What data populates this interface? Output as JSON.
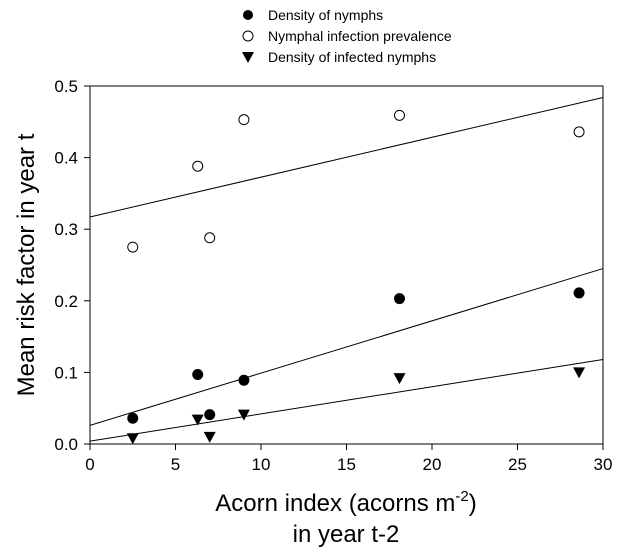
{
  "chart_data": {
    "type": "scatter",
    "xlabel": "Acorn index (acorns m-2)",
    "xlabel_main": "Acorn index (acorns m",
    "xlabel_sup": "-2",
    "xlabel_close": ")",
    "xlabel_line2": "in year t-2",
    "ylabel": "Mean risk factor in year t",
    "xlim": [
      0,
      30
    ],
    "ylim": [
      0,
      0.5
    ],
    "x_ticks": [
      "0",
      "5",
      "10",
      "15",
      "20",
      "25",
      "30"
    ],
    "y_ticks": [
      "0.0",
      "0.1",
      "0.2",
      "0.3",
      "0.4",
      "0.5"
    ],
    "legend_position": "top-center",
    "grid": false,
    "series": [
      {
        "name": "Density of nymphs",
        "marker": "filled-circle",
        "points": [
          [
            2.5,
            0.036
          ],
          [
            6.3,
            0.097
          ],
          [
            7.0,
            0.041
          ],
          [
            9.0,
            0.089
          ],
          [
            18.1,
            0.203
          ],
          [
            28.6,
            0.211
          ]
        ],
        "trendline": [
          [
            0,
            0.026
          ],
          [
            30,
            0.245
          ]
        ]
      },
      {
        "name": "Nymphal infection prevalence",
        "marker": "open-circle",
        "points": [
          [
            2.5,
            0.275
          ],
          [
            6.3,
            0.388
          ],
          [
            7.0,
            0.288
          ],
          [
            9.0,
            0.453
          ],
          [
            18.1,
            0.459
          ],
          [
            28.6,
            0.436
          ]
        ],
        "trendline": [
          [
            0,
            0.317
          ],
          [
            30,
            0.484
          ]
        ]
      },
      {
        "name": "Density of infected nymphs",
        "marker": "down-triangle",
        "points": [
          [
            2.5,
            0.008
          ],
          [
            6.3,
            0.034
          ],
          [
            7.0,
            0.01
          ],
          [
            9.0,
            0.041
          ],
          [
            18.1,
            0.092
          ],
          [
            28.6,
            0.1
          ]
        ],
        "trendline": [
          [
            0,
            0.004
          ],
          [
            30,
            0.118
          ]
        ]
      }
    ]
  }
}
